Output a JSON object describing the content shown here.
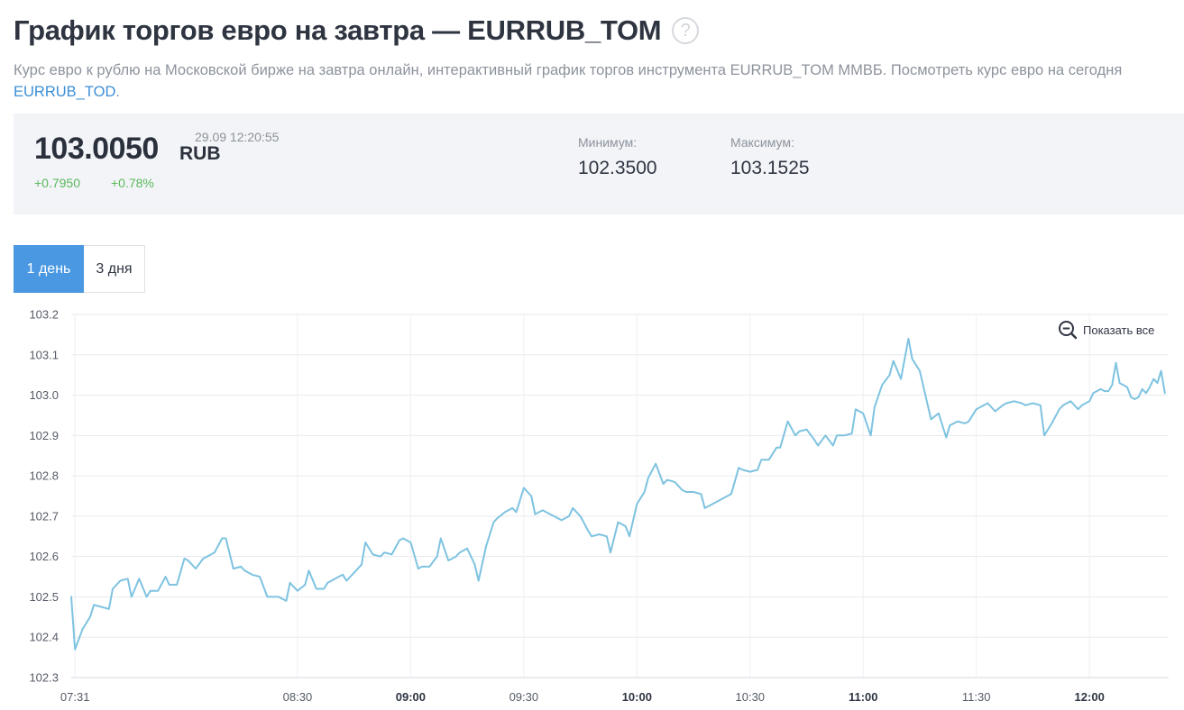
{
  "header": {
    "title": "График торгов евро на завтра — EURRUB_TOM",
    "help_icon": "question-circle-icon",
    "description_text": "Курс евро к рублю на Московской бирже на завтра онлайн, интерактивный график торгов инструмента EURRUB_TOM ММВБ. Посмотреть курс евро на сегодня ",
    "description_link": "EURRUB_TOD",
    "description_end": "."
  },
  "quote": {
    "price": "103.0050",
    "currency": "RUB",
    "time": "29.09 12:20:55",
    "change_abs": "+0.7950",
    "change_pct": "+0.78%",
    "min_label": "Минимум:",
    "min_value": "102.3500",
    "max_label": "Максимум:",
    "max_value": "103.1525"
  },
  "tabs": [
    {
      "label": "1 день",
      "active": true
    },
    {
      "label": "3 дня",
      "active": false
    }
  ],
  "zoom": {
    "label": "Показать все",
    "icon": "zoom-out-icon"
  },
  "colors": {
    "line": "#7ec3e0",
    "positive": "#5cb85c",
    "accent": "#4a98e2",
    "link": "#3d8fd6"
  },
  "chart_data": {
    "type": "line",
    "ylim": [
      102.3,
      103.2
    ],
    "y_ticks": [
      "103.2",
      "103.1",
      "103.0",
      "102.9",
      "102.8",
      "102.7",
      "102.6",
      "102.5",
      "102.4",
      "102.3"
    ],
    "x_ticks": [
      {
        "label": "07:31",
        "t": "07:31",
        "bold": false
      },
      {
        "label": "08:30",
        "t": "08:30",
        "bold": false
      },
      {
        "label": "09:00",
        "t": "09:00",
        "bold": true
      },
      {
        "label": "09:30",
        "t": "09:30",
        "bold": false
      },
      {
        "label": "10:00",
        "t": "10:00",
        "bold": true
      },
      {
        "label": "10:30",
        "t": "10:30",
        "bold": false
      },
      {
        "label": "11:00",
        "t": "11:00",
        "bold": true
      },
      {
        "label": "11:30",
        "t": "11:30",
        "bold": false
      },
      {
        "label": "12:00",
        "t": "12:00",
        "bold": true
      }
    ],
    "xlim": [
      "07:30",
      "12:21"
    ],
    "grid": true,
    "series": [
      {
        "color": "#7ec3e0",
        "points": [
          [
            "07:30",
            102.5
          ],
          [
            "07:31",
            102.37
          ],
          [
            "07:33",
            102.42
          ],
          [
            "07:35",
            102.45
          ],
          [
            "07:36",
            102.48
          ],
          [
            "07:38",
            102.475
          ],
          [
            "07:40",
            102.47
          ],
          [
            "07:41",
            102.52
          ],
          [
            "07:43",
            102.54
          ],
          [
            "07:45",
            102.545
          ],
          [
            "07:46",
            102.5
          ],
          [
            "07:48",
            102.545
          ],
          [
            "07:50",
            102.5
          ],
          [
            "07:51",
            102.515
          ],
          [
            "07:53",
            102.515
          ],
          [
            "07:55",
            102.55
          ],
          [
            "07:56",
            102.53
          ],
          [
            "07:58",
            102.53
          ],
          [
            "08:00",
            102.595
          ],
          [
            "08:01",
            102.59
          ],
          [
            "08:03",
            102.57
          ],
          [
            "08:05",
            102.595
          ],
          [
            "08:06",
            102.6
          ],
          [
            "08:08",
            102.61
          ],
          [
            "08:10",
            102.645
          ],
          [
            "08:11",
            102.645
          ],
          [
            "08:13",
            102.57
          ],
          [
            "08:15",
            102.575
          ],
          [
            "08:16",
            102.565
          ],
          [
            "08:18",
            102.555
          ],
          [
            "08:20",
            102.55
          ],
          [
            "08:22",
            102.5
          ],
          [
            "08:23",
            102.5
          ],
          [
            "08:25",
            102.5
          ],
          [
            "08:27",
            102.49
          ],
          [
            "08:28",
            102.535
          ],
          [
            "08:30",
            102.515
          ],
          [
            "08:32",
            102.53
          ],
          [
            "08:33",
            102.565
          ],
          [
            "08:35",
            102.52
          ],
          [
            "08:37",
            102.52
          ],
          [
            "08:38",
            102.535
          ],
          [
            "08:40",
            102.545
          ],
          [
            "08:42",
            102.555
          ],
          [
            "08:43",
            102.54
          ],
          [
            "08:45",
            102.56
          ],
          [
            "08:47",
            102.58
          ],
          [
            "08:48",
            102.635
          ],
          [
            "08:50",
            102.605
          ],
          [
            "08:52",
            102.6
          ],
          [
            "08:53",
            102.61
          ],
          [
            "08:55",
            102.605
          ],
          [
            "08:57",
            102.64
          ],
          [
            "08:58",
            102.645
          ],
          [
            "09:00",
            102.635
          ],
          [
            "09:02",
            102.57
          ],
          [
            "09:03",
            102.575
          ],
          [
            "09:05",
            102.575
          ],
          [
            "09:07",
            102.6
          ],
          [
            "09:08",
            102.645
          ],
          [
            "09:10",
            102.59
          ],
          [
            "09:12",
            102.6
          ],
          [
            "09:13",
            102.61
          ],
          [
            "09:15",
            102.62
          ],
          [
            "09:17",
            102.58
          ],
          [
            "09:18",
            102.54
          ],
          [
            "09:20",
            102.625
          ],
          [
            "09:22",
            102.685
          ],
          [
            "09:23",
            102.695
          ],
          [
            "09:25",
            102.71
          ],
          [
            "09:27",
            102.72
          ],
          [
            "09:28",
            102.71
          ],
          [
            "09:30",
            102.77
          ],
          [
            "09:32",
            102.75
          ],
          [
            "09:33",
            102.705
          ],
          [
            "09:35",
            102.715
          ],
          [
            "09:37",
            102.705
          ],
          [
            "09:38",
            102.7
          ],
          [
            "09:40",
            102.69
          ],
          [
            "09:42",
            102.7
          ],
          [
            "09:43",
            102.72
          ],
          [
            "09:45",
            102.7
          ],
          [
            "09:47",
            102.665
          ],
          [
            "09:48",
            102.65
          ],
          [
            "09:50",
            102.655
          ],
          [
            "09:52",
            102.65
          ],
          [
            "09:53",
            102.61
          ],
          [
            "09:55",
            102.685
          ],
          [
            "09:57",
            102.675
          ],
          [
            "09:58",
            102.65
          ],
          [
            "10:00",
            102.73
          ],
          [
            "10:02",
            102.76
          ],
          [
            "10:03",
            102.795
          ],
          [
            "10:05",
            102.83
          ],
          [
            "10:07",
            102.78
          ],
          [
            "10:08",
            102.79
          ],
          [
            "10:10",
            102.785
          ],
          [
            "10:12",
            102.765
          ],
          [
            "10:13",
            102.76
          ],
          [
            "10:15",
            102.76
          ],
          [
            "10:17",
            102.755
          ],
          [
            "10:18",
            102.72
          ],
          [
            "10:20",
            102.73
          ],
          [
            "10:22",
            102.74
          ],
          [
            "10:23",
            102.745
          ],
          [
            "10:25",
            102.755
          ],
          [
            "10:27",
            102.82
          ],
          [
            "10:28",
            102.815
          ],
          [
            "10:30",
            102.81
          ],
          [
            "10:32",
            102.815
          ],
          [
            "10:33",
            102.84
          ],
          [
            "10:35",
            102.84
          ],
          [
            "10:37",
            102.87
          ],
          [
            "10:38",
            102.87
          ],
          [
            "10:40",
            102.935
          ],
          [
            "10:42",
            102.9
          ],
          [
            "10:43",
            102.91
          ],
          [
            "10:45",
            102.915
          ],
          [
            "10:47",
            102.89
          ],
          [
            "10:48",
            102.875
          ],
          [
            "10:50",
            102.9
          ],
          [
            "10:52",
            102.875
          ],
          [
            "10:53",
            102.9
          ],
          [
            "10:55",
            102.9
          ],
          [
            "10:57",
            102.905
          ],
          [
            "10:58",
            102.965
          ],
          [
            "11:00",
            102.955
          ],
          [
            "11:02",
            102.9
          ],
          [
            "11:03",
            102.97
          ],
          [
            "11:05",
            103.025
          ],
          [
            "11:07",
            103.05
          ],
          [
            "11:08",
            103.085
          ],
          [
            "11:10",
            103.04
          ],
          [
            "11:12",
            103.14
          ],
          [
            "11:13",
            103.09
          ],
          [
            "11:15",
            103.06
          ],
          [
            "11:17",
            102.98
          ],
          [
            "11:18",
            102.94
          ],
          [
            "11:20",
            102.955
          ],
          [
            "11:22",
            102.895
          ],
          [
            "11:23",
            102.925
          ],
          [
            "11:25",
            102.935
          ],
          [
            "11:27",
            102.93
          ],
          [
            "11:28",
            102.935
          ],
          [
            "11:30",
            102.965
          ],
          [
            "11:32",
            102.975
          ],
          [
            "11:33",
            102.98
          ],
          [
            "11:35",
            102.96
          ],
          [
            "11:37",
            102.975
          ],
          [
            "11:38",
            102.98
          ],
          [
            "11:40",
            102.985
          ],
          [
            "11:42",
            102.98
          ],
          [
            "11:43",
            102.975
          ],
          [
            "11:45",
            102.98
          ],
          [
            "11:47",
            102.975
          ],
          [
            "11:48",
            102.9
          ],
          [
            "11:50",
            102.93
          ],
          [
            "11:52",
            102.965
          ],
          [
            "11:53",
            102.975
          ],
          [
            "11:55",
            102.985
          ],
          [
            "11:57",
            102.965
          ],
          [
            "11:58",
            102.975
          ],
          [
            "12:00",
            102.985
          ],
          [
            "12:01",
            103.005
          ],
          [
            "12:03",
            103.015
          ],
          [
            "12:04",
            103.01
          ],
          [
            "12:05",
            103.01
          ],
          [
            "12:06",
            103.025
          ],
          [
            "12:07",
            103.08
          ],
          [
            "12:08",
            103.03
          ],
          [
            "12:09",
            103.025
          ],
          [
            "12:10",
            103.02
          ],
          [
            "12:11",
            102.995
          ],
          [
            "12:12",
            102.99
          ],
          [
            "12:13",
            102.995
          ],
          [
            "12:14",
            103.015
          ],
          [
            "12:15",
            103.005
          ],
          [
            "12:16",
            103.02
          ],
          [
            "12:17",
            103.04
          ],
          [
            "12:18",
            103.03
          ],
          [
            "12:19",
            103.06
          ],
          [
            "12:20",
            103.005
          ]
        ]
      }
    ]
  }
}
